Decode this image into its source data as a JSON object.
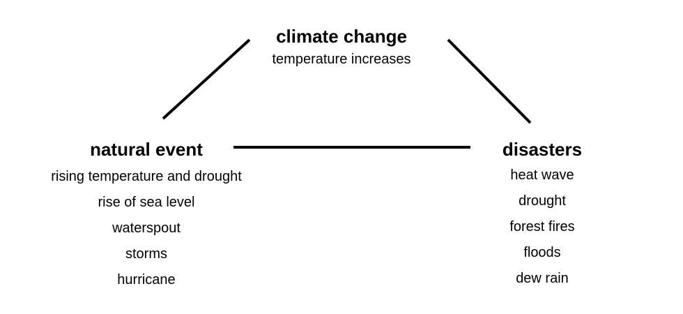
{
  "diagram": {
    "line_color": "#000000",
    "climate_change": {
      "title": "climate change",
      "subtitle": "temperature increases"
    },
    "natural_event": {
      "title": "natural event",
      "items": [
        "rising temperature and drought",
        "rise of sea level",
        "waterspout",
        "storms",
        "hurricane"
      ]
    },
    "disasters": {
      "title": "disasters",
      "items": [
        "heat wave",
        "drought",
        "forest fires",
        "floods",
        "dew rain"
      ]
    }
  }
}
